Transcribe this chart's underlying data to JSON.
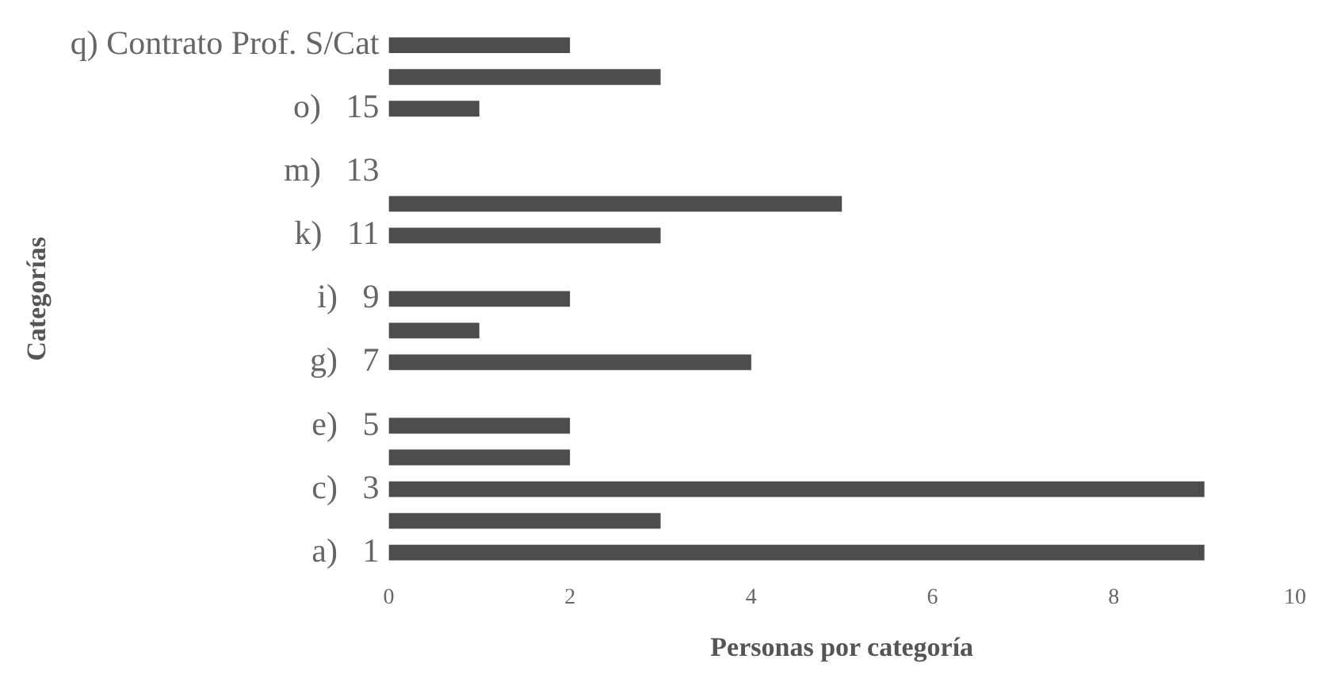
{
  "chart_data": {
    "type": "bar",
    "orientation": "horizontal",
    "xlabel": "Personas por categoría",
    "ylabel": "Categorías",
    "categories": [
      "q) Contrato Prof. S/Cat",
      null,
      "o)   15",
      null,
      "m)   13",
      null,
      "k)   11",
      null,
      "i)   9",
      null,
      "g)   7",
      null,
      "e)   5",
      null,
      "c)   3",
      null,
      "a)   1"
    ],
    "values": [
      2,
      3,
      1,
      0,
      0,
      5,
      3,
      0,
      2,
      1,
      4,
      0,
      2,
      2,
      9,
      3,
      9
    ],
    "color": "#4d4d4d",
    "xlim": [
      0,
      10
    ],
    "xticks": [
      0,
      2,
      4,
      6,
      8,
      10
    ],
    "grid": false,
    "legend": false
  }
}
